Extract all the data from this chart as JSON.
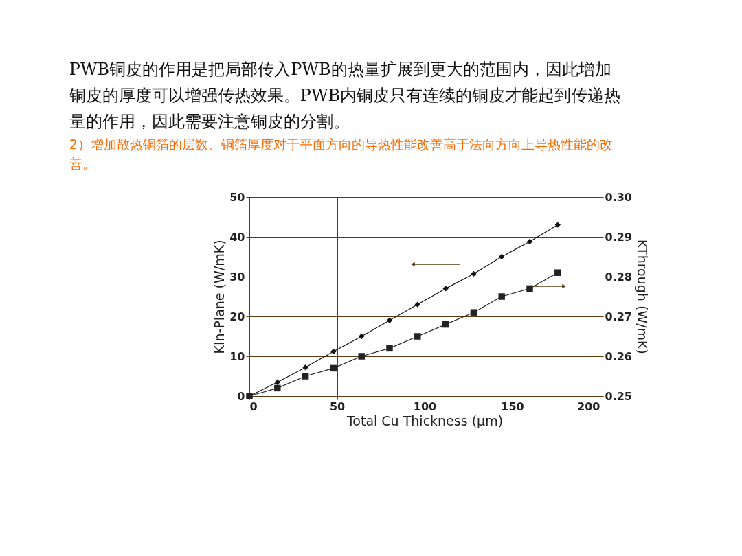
{
  "chart_data": {
    "type": "line",
    "title": "PWB铜皮的作用是把局部传入PWB的热量扩展到更大的范围内，因此增加铜皮的厚度可以增强传热效果。PWB内铜皮只有连续的铜皮才能起到传递热量的作用，因此需要注意铜皮的分割。",
    "subtitle": "2）增加散热铜箔的层数、铜箔厚度对于平面方向的导热性能改善高于法向方向上导热性能的改善。",
    "xlabel": "Total Cu Thickness (μm)",
    "ylabel": "KIn-Plane (W/mK)",
    "y2label": "KThrough (W/mK)",
    "series": [
      {
        "color": "#111111",
        "marker": "diamond",
        "x": [
          0,
          16,
          32,
          48,
          64,
          80,
          96,
          112,
          128,
          144,
          160,
          176
        ],
        "values": [
          0,
          3.5,
          7.2,
          11.2,
          15,
          19,
          23,
          27,
          30.7,
          35,
          38.8,
          43
        ]
      },
      {
        "color": "#222222",
        "marker": "square",
        "axis": "y2",
        "x": [
          0,
          16,
          32,
          48,
          64,
          80,
          96,
          112,
          128,
          144,
          160,
          176
        ],
        "values": [
          0.25,
          0.252,
          0.255,
          0.257,
          0.26,
          0.262,
          0.265,
          0.268,
          0.271,
          0.275,
          0.277,
          0.281
        ]
      }
    ],
    "xlim": [
      0,
      200
    ],
    "xticks": [
      0,
      50,
      100,
      150,
      200
    ],
    "ylim": [
      0,
      50
    ],
    "yticks": [
      0,
      10,
      20,
      30,
      40,
      50
    ],
    "y2lim": [
      0.25,
      0.3
    ],
    "y2ticks": [
      {
        "value": 0.25,
        "label": "0.25"
      },
      {
        "value": 0.26,
        "label": "0.26"
      },
      {
        "value": 0.27,
        "label": "0.27"
      },
      {
        "value": 0.28,
        "label": "0.28"
      },
      {
        "value": 0.29,
        "label": "0.29"
      },
      {
        "value": 0.3,
        "label": "0.30"
      }
    ],
    "grid": true,
    "line_style": "solid"
  }
}
